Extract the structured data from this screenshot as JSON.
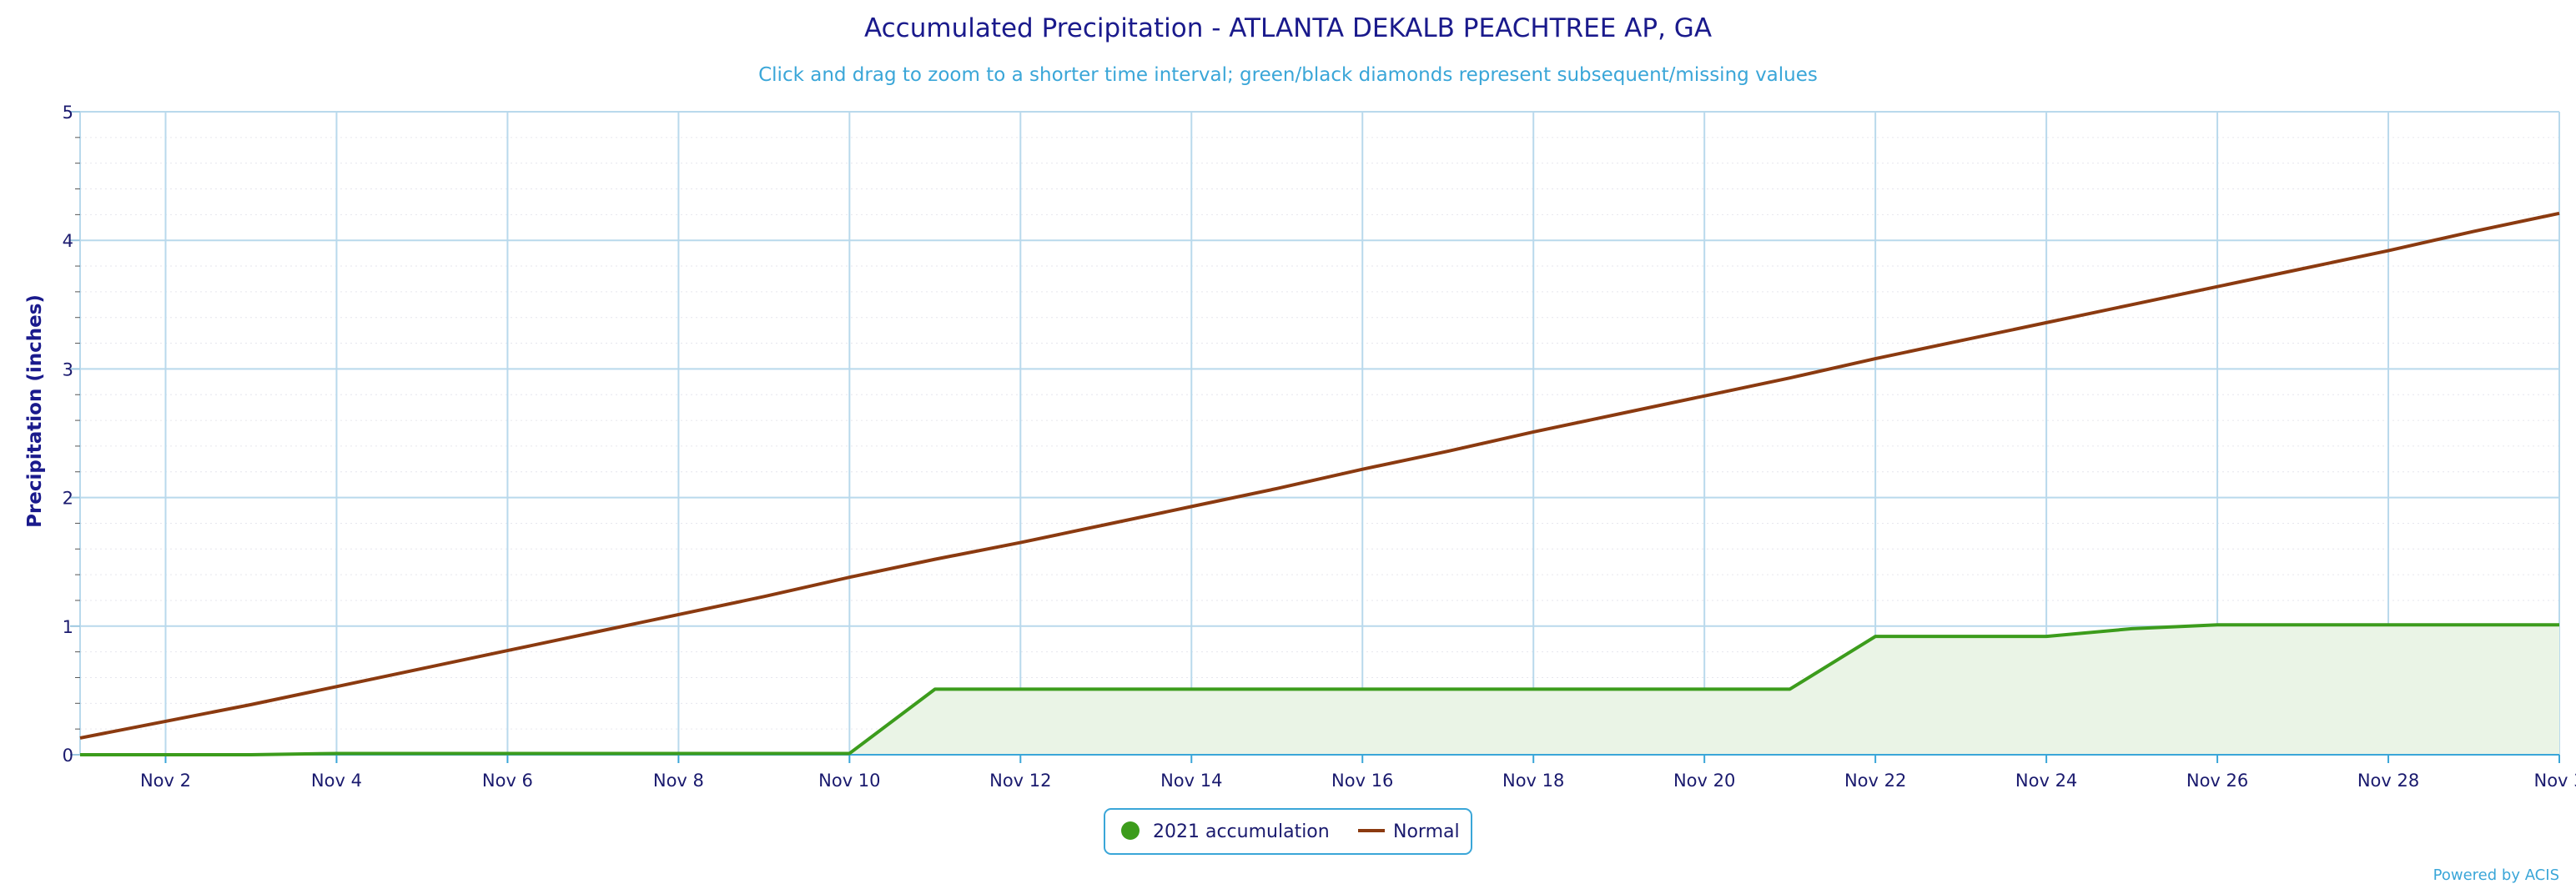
{
  "chart_data": {
    "type": "area",
    "title": "Accumulated Precipitation - ATLANTA DEKALB PEACHTREE AP, GA",
    "subtitle": "Click and drag to zoom to a shorter time interval; green/black diamonds represent subsequent/missing values",
    "xlabel": "",
    "ylabel": "Precipitation (inches)",
    "ylim": [
      0,
      5
    ],
    "yticks": [
      "0",
      "1",
      "2",
      "3",
      "4",
      "5"
    ],
    "xlim": [
      1,
      30
    ],
    "xticks": [
      {
        "day": 2,
        "label": "Nov 2"
      },
      {
        "day": 4,
        "label": "Nov 4"
      },
      {
        "day": 6,
        "label": "Nov 6"
      },
      {
        "day": 8,
        "label": "Nov 8"
      },
      {
        "day": 10,
        "label": "Nov 10"
      },
      {
        "day": 12,
        "label": "Nov 12"
      },
      {
        "day": 14,
        "label": "Nov 14"
      },
      {
        "day": 16,
        "label": "Nov 16"
      },
      {
        "day": 18,
        "label": "Nov 18"
      },
      {
        "day": 20,
        "label": "Nov 20"
      },
      {
        "day": 22,
        "label": "Nov 22"
      },
      {
        "day": 24,
        "label": "Nov 24"
      },
      {
        "day": 26,
        "label": "Nov 26"
      },
      {
        "day": 28,
        "label": "Nov 28"
      },
      {
        "day": 30,
        "label": "Nov 3"
      }
    ],
    "grid": true,
    "legend_position": "bottom-center",
    "series": [
      {
        "name": "2021 accumulation",
        "style": "area",
        "color": "#3c9c1c",
        "fill": "#eaf4e6",
        "points": [
          [
            1,
            0.0
          ],
          [
            2,
            0.0
          ],
          [
            3,
            0.0
          ],
          [
            4,
            0.01
          ],
          [
            5,
            0.01
          ],
          [
            6,
            0.01
          ],
          [
            7,
            0.01
          ],
          [
            8,
            0.01
          ],
          [
            9,
            0.01
          ],
          [
            10,
            0.01
          ],
          [
            11,
            0.51
          ],
          [
            12,
            0.51
          ],
          [
            13,
            0.51
          ],
          [
            14,
            0.51
          ],
          [
            15,
            0.51
          ],
          [
            16,
            0.51
          ],
          [
            17,
            0.51
          ],
          [
            18,
            0.51
          ],
          [
            19,
            0.51
          ],
          [
            20,
            0.51
          ],
          [
            21,
            0.51
          ],
          [
            22,
            0.92
          ],
          [
            23,
            0.92
          ],
          [
            24,
            0.92
          ],
          [
            25,
            0.98
          ],
          [
            26,
            1.01
          ],
          [
            27,
            1.01
          ],
          [
            28,
            1.01
          ],
          [
            29,
            1.01
          ],
          [
            30,
            1.01
          ]
        ]
      },
      {
        "name": "Normal",
        "style": "line",
        "color": "#8b3a10",
        "points": [
          [
            1,
            0.13
          ],
          [
            2,
            0.26
          ],
          [
            3,
            0.39
          ],
          [
            4,
            0.53
          ],
          [
            5,
            0.67
          ],
          [
            6,
            0.81
          ],
          [
            7,
            0.95
          ],
          [
            8,
            1.09
          ],
          [
            9,
            1.23
          ],
          [
            10,
            1.38
          ],
          [
            11,
            1.52
          ],
          [
            12,
            1.65
          ],
          [
            13,
            1.79
          ],
          [
            14,
            1.93
          ],
          [
            15,
            2.07
          ],
          [
            16,
            2.22
          ],
          [
            17,
            2.36
          ],
          [
            18,
            2.51
          ],
          [
            19,
            2.65
          ],
          [
            20,
            2.79
          ],
          [
            21,
            2.93
          ],
          [
            22,
            3.08
          ],
          [
            23,
            3.22
          ],
          [
            24,
            3.36
          ],
          [
            25,
            3.5
          ],
          [
            26,
            3.64
          ],
          [
            27,
            3.78
          ],
          [
            28,
            3.92
          ],
          [
            29,
            4.07
          ],
          [
            30,
            4.21
          ]
        ]
      }
    ],
    "credit": "Powered by ACIS"
  }
}
